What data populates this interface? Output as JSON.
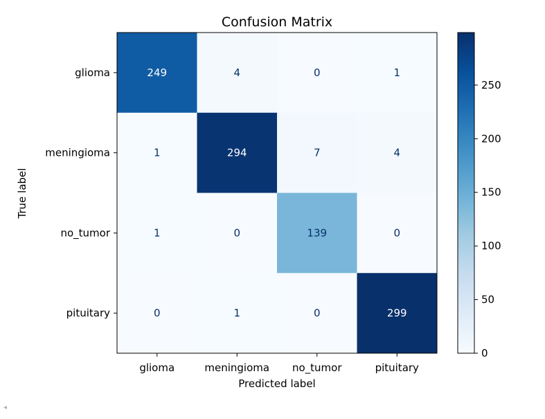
{
  "chart_data": {
    "type": "heatmap",
    "title": "Confusion Matrix",
    "xlabel": "Predicted label",
    "ylabel": "True label",
    "x_categories": [
      "glioma",
      "meningioma",
      "no_tumor",
      "pituitary"
    ],
    "y_categories": [
      "glioma",
      "meningioma",
      "no_tumor",
      "pituitary"
    ],
    "values": [
      [
        249,
        4,
        0,
        1
      ],
      [
        1,
        294,
        7,
        4
      ],
      [
        1,
        0,
        139,
        0
      ],
      [
        0,
        1,
        0,
        299
      ]
    ],
    "colormap": "Blues",
    "colorbar": {
      "range": [
        0,
        299
      ],
      "ticks": [
        0,
        50,
        100,
        150,
        200,
        250
      ],
      "tick_labels": [
        "0",
        "50",
        "100",
        "150",
        "200",
        "250"
      ]
    },
    "text_color_light": "#ffffff",
    "text_color_dark": "#08306b"
  },
  "ui": {
    "scroll_indicator": "◂"
  }
}
